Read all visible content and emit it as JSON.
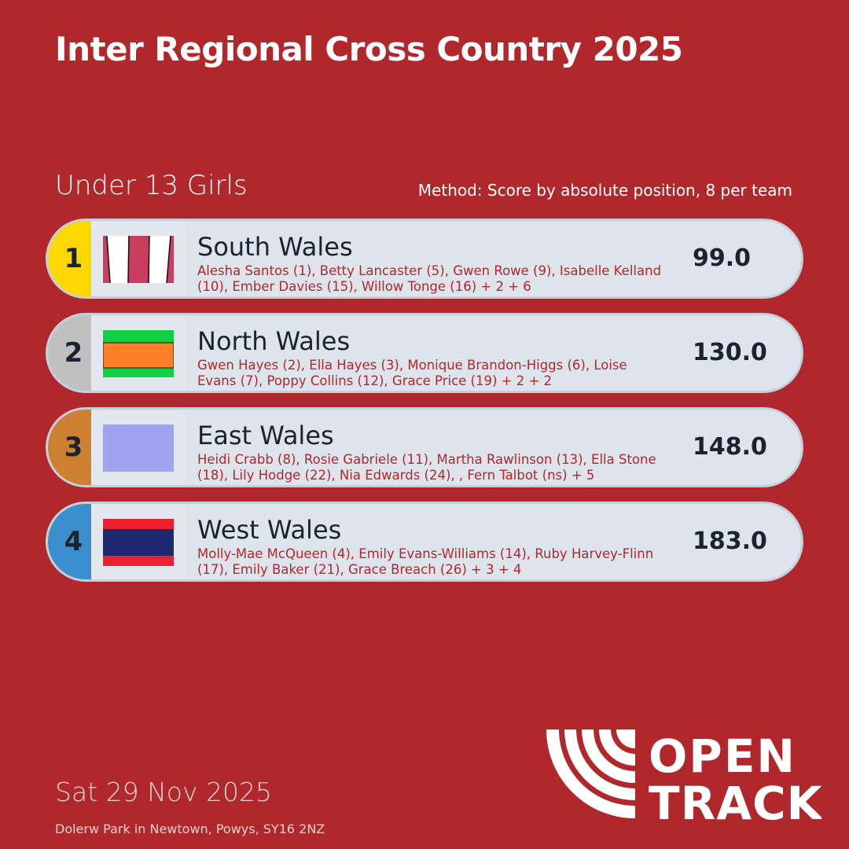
{
  "title": "Inter Regional Cross Country 2025",
  "category": "Under 13 Girls",
  "method": "Method: Score by absolute position, 8 per team",
  "results": [
    {
      "rank": "1",
      "team": "South Wales",
      "members": "Alesha Santos (1), Betty Lancaster (5), Gwen Rowe (9), Isabelle Kelland (10), Ember Davies (15), Willow Tonge (16) + 2 + 6",
      "score": "99.0",
      "badge_color": "#ffd700",
      "flag": "stripes-red-white"
    },
    {
      "rank": "2",
      "team": "North Wales",
      "members": "Gwen Hayes (2), Ella Hayes (3), Monique Brandon-Higgs (6), Loise Evans (7), Poppy Collins (12), Grace Price (19) + 2 + 2",
      "score": "130.0",
      "badge_color": "#c0c0c0",
      "flag": "green-orange-green"
    },
    {
      "rank": "3",
      "team": "East Wales",
      "members": "Heidi Crabb (8), Rosie Gabriele (11), Martha Rawlinson (13), Ella Stone (18), Lily Hodge (22), Nia Edwards (24), , Fern Talbot (ns) + 5",
      "score": "148.0",
      "badge_color": "#cd7f32",
      "flag": "lavender"
    },
    {
      "rank": "4",
      "team": "West Wales",
      "members": "Molly-Mae McQueen (4), Emily Evans-Williams (14), Ruby Harvey-Flinn (17), Emily Baker (21), Grace Breach (26) + 3 + 4",
      "score": "183.0",
      "badge_color": "#3a8fcc",
      "flag": "red-navy-red"
    }
  ],
  "date": "Sat 29 Nov 2025",
  "venue": "Dolerw Park in Newtown, Powys, SY16 2NZ",
  "logo": {
    "line1": "OPEN",
    "line2": "TRACK"
  }
}
